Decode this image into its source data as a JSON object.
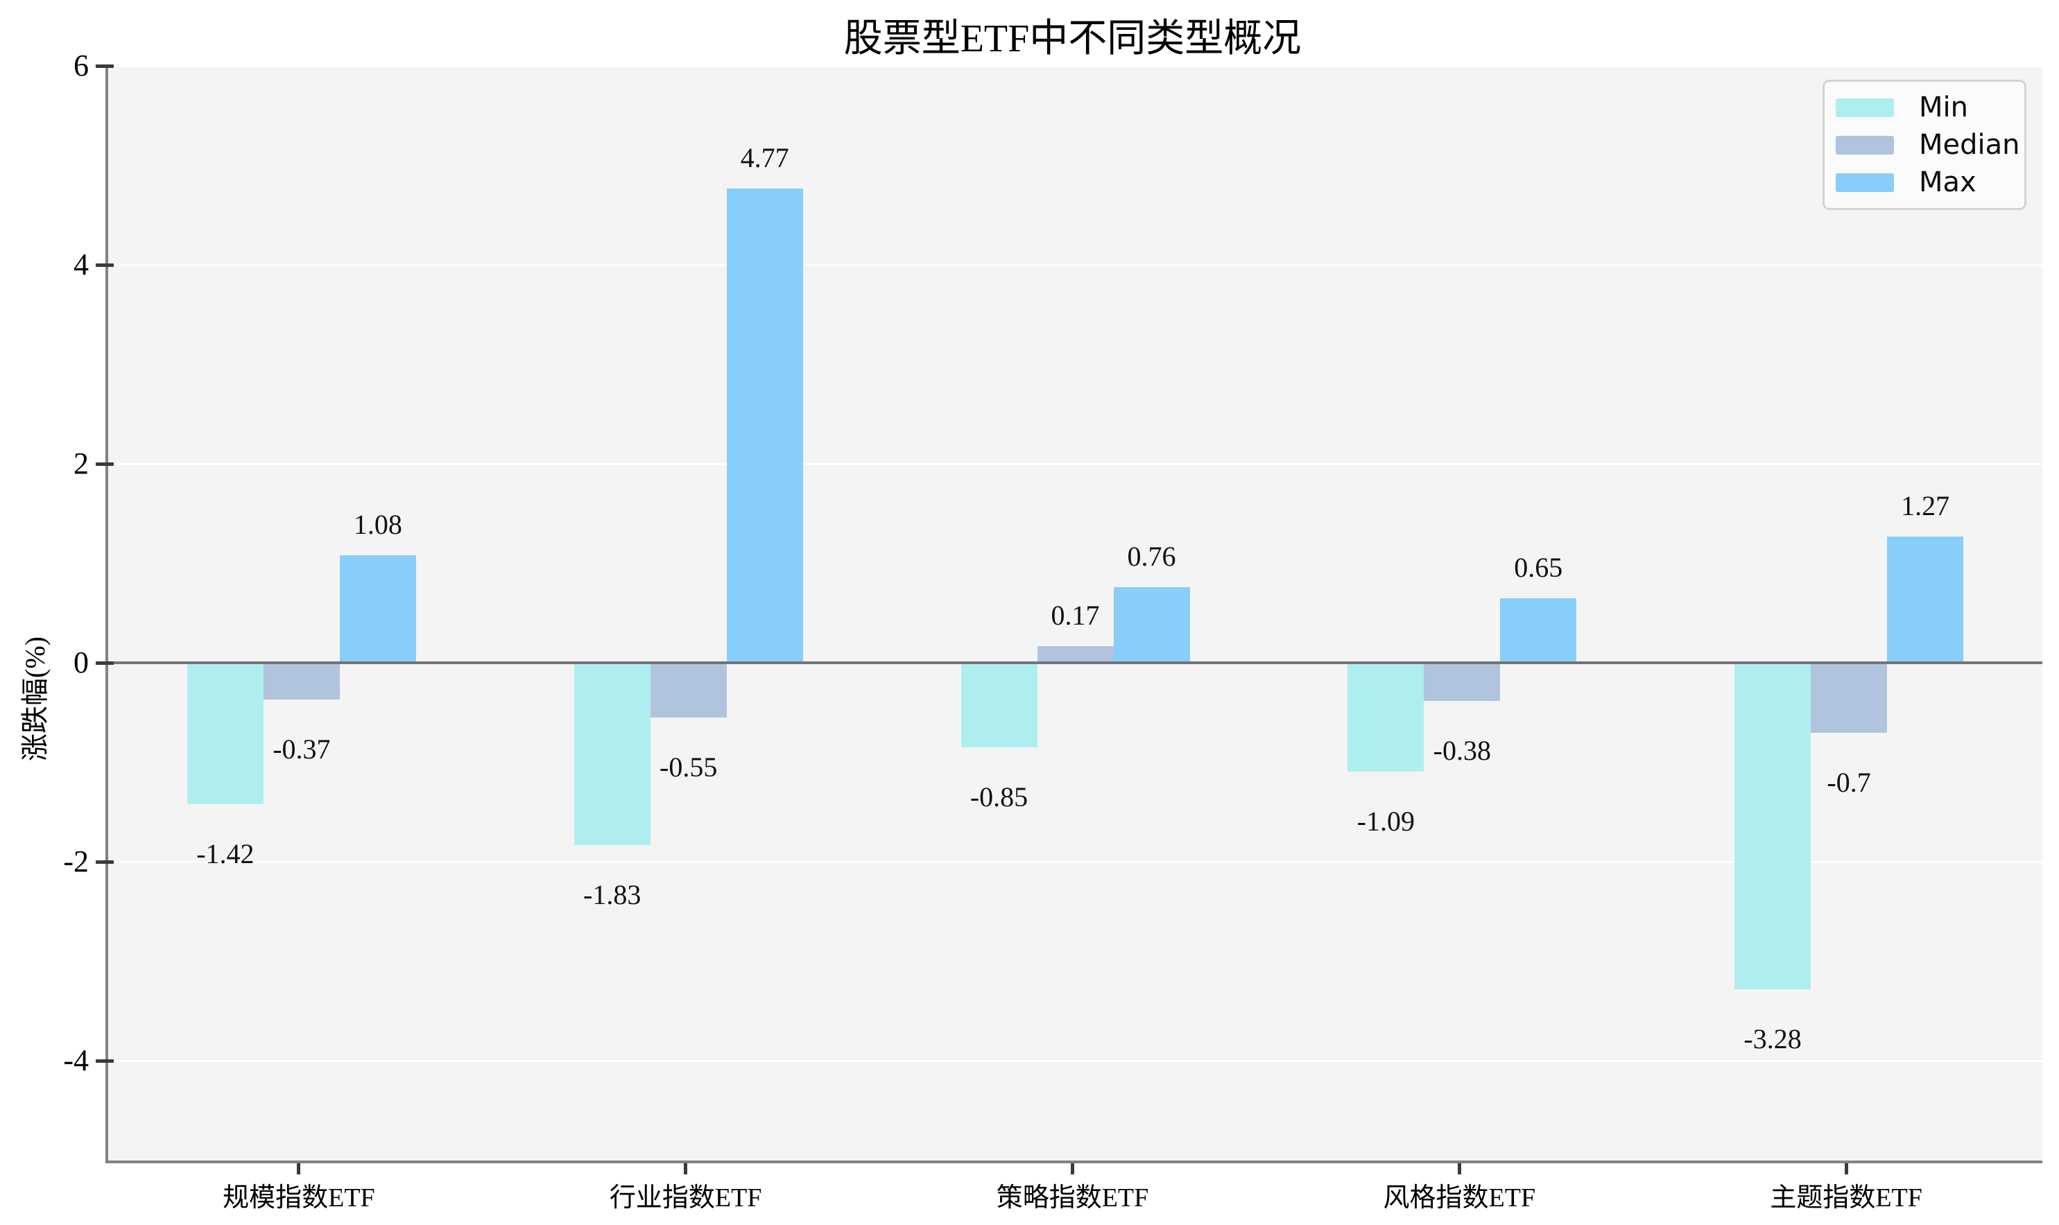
{
  "chart_data": {
    "type": "bar",
    "title": "股票型ETF中不同类型概况",
    "xlabel": "",
    "ylabel": "涨跌幅(%)",
    "categories": [
      "规模指数ETF",
      "行业指数ETF",
      "策略指数ETF",
      "风格指数ETF",
      "主题指数ETF"
    ],
    "series": [
      {
        "name": "Min",
        "color": "#AFEEEE",
        "values": [
          -1.42,
          -1.83,
          -0.85,
          -1.09,
          -3.28
        ]
      },
      {
        "name": "Median",
        "color": "#B0C4DE",
        "values": [
          -0.37,
          -0.55,
          0.17,
          -0.38,
          -0.7
        ]
      },
      {
        "name": "Max",
        "color": "#87CEFA",
        "values": [
          1.08,
          4.77,
          0.76,
          0.65,
          1.27
        ]
      }
    ],
    "ylim": [
      -5,
      6
    ],
    "yticks": [
      6,
      4,
      2,
      0,
      -2,
      -4
    ],
    "grid": true,
    "value_labels": true,
    "legend_position": "upper right",
    "colors": {
      "plot_background": "#f4f4f5",
      "grid_color": "#ffffff",
      "zero_line": "#757575",
      "spine": "#828282",
      "tick": "#3a3a3a",
      "legend_border": "#d3d3d3",
      "legend_background": "#fbfbfb"
    }
  }
}
